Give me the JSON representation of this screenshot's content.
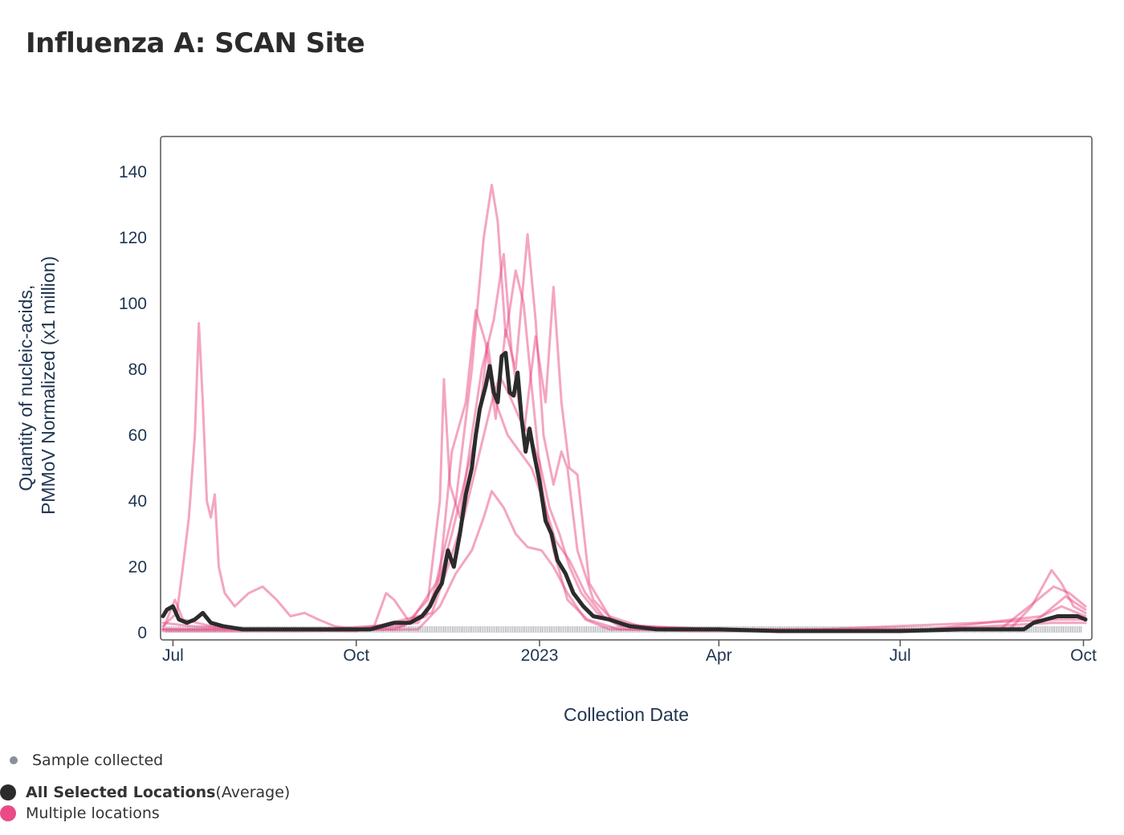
{
  "title": "Influenza A: SCAN Site",
  "legend": {
    "sample_label": "Sample collected",
    "avg_label_bold": "All Selected Locations",
    "avg_label_rest": " (Average)",
    "multi_label": "Multiple locations"
  },
  "colors": {
    "average": "#2b2b2b",
    "locations": "#e94b86",
    "sample": "#8a8f98"
  },
  "chart_data": {
    "type": "line",
    "title": "Influenza A: SCAN Site",
    "xlabel": "Collection Date",
    "ylabel_lines": [
      "Quantity of nucleic-acids,",
      "PMMoV Normalized (x1 million)"
    ],
    "x_range": [
      "2022-06-26",
      "2023-10-02"
    ],
    "ylim": [
      0,
      150
    ],
    "y_ticks": [
      0,
      20,
      40,
      60,
      80,
      100,
      120,
      140
    ],
    "x_ticks": [
      {
        "date": "2022-07-01",
        "label": "Jul"
      },
      {
        "date": "2022-10-01",
        "label": "Oct"
      },
      {
        "date": "2023-01-01",
        "label": "2023"
      },
      {
        "date": "2023-04-01",
        "label": "Apr"
      },
      {
        "date": "2023-07-01",
        "label": "Jul"
      },
      {
        "date": "2023-10-01",
        "label": "Oct"
      }
    ],
    "grid": false,
    "sample_marker_band": [
      "2022-06-26",
      "2023-10-02"
    ],
    "series": [
      {
        "name": "All Selected Locations",
        "values": [
          [
            "2022-06-26",
            5
          ],
          [
            "2022-06-28",
            7
          ],
          [
            "2022-07-01",
            8
          ],
          [
            "2022-07-04",
            4
          ],
          [
            "2022-07-08",
            3
          ],
          [
            "2022-07-12",
            4
          ],
          [
            "2022-07-16",
            6
          ],
          [
            "2022-07-20",
            3
          ],
          [
            "2022-07-26",
            2
          ],
          [
            "2022-08-05",
            1
          ],
          [
            "2022-09-01",
            1
          ],
          [
            "2022-09-20",
            1
          ],
          [
            "2022-10-01",
            1
          ],
          [
            "2022-10-08",
            1
          ],
          [
            "2022-10-14",
            2
          ],
          [
            "2022-10-20",
            3
          ],
          [
            "2022-10-28",
            3
          ],
          [
            "2022-11-03",
            5
          ],
          [
            "2022-11-07",
            8
          ],
          [
            "2022-11-10",
            12
          ],
          [
            "2022-11-13",
            15
          ],
          [
            "2022-11-16",
            25
          ],
          [
            "2022-11-19",
            20
          ],
          [
            "2022-11-22",
            30
          ],
          [
            "2022-11-25",
            42
          ],
          [
            "2022-11-28",
            50
          ],
          [
            "2022-11-30",
            60
          ],
          [
            "2022-12-02",
            68
          ],
          [
            "2022-12-05",
            75
          ],
          [
            "2022-12-07",
            81
          ],
          [
            "2022-12-09",
            73
          ],
          [
            "2022-12-11",
            70
          ],
          [
            "2022-12-13",
            84
          ],
          [
            "2022-12-15",
            85
          ],
          [
            "2022-12-17",
            73
          ],
          [
            "2022-12-19",
            72
          ],
          [
            "2022-12-21",
            79
          ],
          [
            "2022-12-23",
            65
          ],
          [
            "2022-12-25",
            55
          ],
          [
            "2022-12-27",
            62
          ],
          [
            "2022-12-29",
            55
          ],
          [
            "2023-01-01",
            46
          ],
          [
            "2023-01-04",
            34
          ],
          [
            "2023-01-07",
            30
          ],
          [
            "2023-01-10",
            22
          ],
          [
            "2023-01-14",
            18
          ],
          [
            "2023-01-18",
            12
          ],
          [
            "2023-01-23",
            8
          ],
          [
            "2023-01-28",
            5
          ],
          [
            "2023-02-05",
            4
          ],
          [
            "2023-02-15",
            2
          ],
          [
            "2023-03-01",
            1
          ],
          [
            "2023-04-01",
            1
          ],
          [
            "2023-05-01",
            0.5
          ],
          [
            "2023-06-01",
            0.5
          ],
          [
            "2023-07-01",
            0.5
          ],
          [
            "2023-08-01",
            1
          ],
          [
            "2023-08-20",
            1
          ],
          [
            "2023-09-01",
            1
          ],
          [
            "2023-09-06",
            3
          ],
          [
            "2023-09-12",
            4
          ],
          [
            "2023-09-18",
            5
          ],
          [
            "2023-09-24",
            5
          ],
          [
            "2023-09-28",
            5
          ],
          [
            "2023-10-02",
            4
          ]
        ]
      },
      {
        "name": "",
        "values": [
          [
            "2022-06-26",
            2
          ],
          [
            "2022-07-03",
            6
          ],
          [
            "2022-07-06",
            20
          ],
          [
            "2022-07-09",
            35
          ],
          [
            "2022-07-12",
            60
          ],
          [
            "2022-07-14",
            94
          ],
          [
            "2022-07-16",
            70
          ],
          [
            "2022-07-18",
            40
          ],
          [
            "2022-07-20",
            35
          ],
          [
            "2022-07-22",
            42
          ],
          [
            "2022-07-24",
            20
          ],
          [
            "2022-07-27",
            12
          ],
          [
            "2022-08-01",
            8
          ],
          [
            "2022-08-08",
            12
          ],
          [
            "2022-08-15",
            14
          ],
          [
            "2022-08-22",
            10
          ],
          [
            "2022-08-29",
            5
          ],
          [
            "2022-09-05",
            6
          ],
          [
            "2022-09-12",
            4
          ],
          [
            "2022-09-20",
            2
          ],
          [
            "2022-10-01",
            1
          ],
          [
            "2022-10-10",
            2
          ],
          [
            "2022-10-16",
            12
          ],
          [
            "2022-10-20",
            10
          ],
          [
            "2022-10-28",
            3
          ],
          [
            "2022-11-10",
            15
          ],
          [
            "2022-11-20",
            40
          ],
          [
            "2022-11-28",
            80
          ],
          [
            "2022-12-04",
            120
          ],
          [
            "2022-12-08",
            136
          ],
          [
            "2022-12-11",
            125
          ],
          [
            "2022-12-15",
            90
          ],
          [
            "2022-12-20",
            110
          ],
          [
            "2022-12-24",
            100
          ],
          [
            "2022-12-28",
            75
          ],
          [
            "2023-01-02",
            45
          ],
          [
            "2023-01-08",
            25
          ],
          [
            "2023-01-15",
            10
          ],
          [
            "2023-01-25",
            4
          ],
          [
            "2023-02-10",
            1
          ],
          [
            "2023-03-20",
            0.5
          ],
          [
            "2023-07-01",
            0.5
          ],
          [
            "2023-08-25",
            1
          ],
          [
            "2023-09-05",
            8
          ],
          [
            "2023-09-15",
            19
          ],
          [
            "2023-09-20",
            15
          ],
          [
            "2023-09-26",
            8
          ],
          [
            "2023-10-02",
            6
          ]
        ]
      },
      {
        "name": "",
        "values": [
          [
            "2022-06-26",
            1
          ],
          [
            "2022-07-02",
            10
          ],
          [
            "2022-07-06",
            4
          ],
          [
            "2022-07-20",
            2
          ],
          [
            "2022-08-10",
            1
          ],
          [
            "2022-09-10",
            1
          ],
          [
            "2022-10-20",
            1
          ],
          [
            "2022-11-05",
            5
          ],
          [
            "2022-11-12",
            18
          ],
          [
            "2022-11-18",
            55
          ],
          [
            "2022-11-25",
            70
          ],
          [
            "2022-11-30",
            98
          ],
          [
            "2022-12-05",
            88
          ],
          [
            "2022-12-10",
            65
          ],
          [
            "2022-12-15",
            92
          ],
          [
            "2022-12-20",
            80
          ],
          [
            "2022-12-26",
            121
          ],
          [
            "2022-12-30",
            95
          ],
          [
            "2023-01-03",
            60
          ],
          [
            "2023-01-08",
            45
          ],
          [
            "2023-01-12",
            55
          ],
          [
            "2023-01-15",
            50
          ],
          [
            "2023-01-20",
            25
          ],
          [
            "2023-01-28",
            10
          ],
          [
            "2023-02-08",
            3
          ],
          [
            "2023-03-10",
            1
          ],
          [
            "2023-06-01",
            0.5
          ],
          [
            "2023-08-20",
            1
          ],
          [
            "2023-09-08",
            10
          ],
          [
            "2023-09-16",
            14
          ],
          [
            "2023-09-24",
            12
          ],
          [
            "2023-10-02",
            8
          ]
        ]
      },
      {
        "name": "",
        "values": [
          [
            "2022-06-26",
            3
          ],
          [
            "2022-07-10",
            2
          ],
          [
            "2022-08-10",
            1
          ],
          [
            "2022-10-01",
            1
          ],
          [
            "2022-10-25",
            2
          ],
          [
            "2022-11-06",
            10
          ],
          [
            "2022-11-12",
            40
          ],
          [
            "2022-11-14",
            77
          ],
          [
            "2022-11-17",
            45
          ],
          [
            "2022-11-22",
            35
          ],
          [
            "2022-11-28",
            60
          ],
          [
            "2022-12-03",
            80
          ],
          [
            "2022-12-09",
            95
          ],
          [
            "2022-12-14",
            115
          ],
          [
            "2022-12-18",
            85
          ],
          [
            "2022-12-24",
            60
          ],
          [
            "2022-12-30",
            90
          ],
          [
            "2023-01-04",
            70
          ],
          [
            "2023-01-08",
            105
          ],
          [
            "2023-01-12",
            70
          ],
          [
            "2023-01-16",
            50
          ],
          [
            "2023-01-20",
            48
          ],
          [
            "2023-01-26",
            15
          ],
          [
            "2023-02-05",
            5
          ],
          [
            "2023-02-20",
            2
          ],
          [
            "2023-04-01",
            1
          ],
          [
            "2023-07-15",
            1
          ],
          [
            "2023-09-10",
            5
          ],
          [
            "2023-09-20",
            8
          ],
          [
            "2023-10-02",
            5
          ]
        ]
      },
      {
        "name": "",
        "values": [
          [
            "2022-06-26",
            1
          ],
          [
            "2022-08-01",
            1
          ],
          [
            "2022-10-01",
            0.5
          ],
          [
            "2022-11-08",
            6
          ],
          [
            "2022-11-16",
            20
          ],
          [
            "2022-11-24",
            35
          ],
          [
            "2022-12-02",
            55
          ],
          [
            "2022-12-08",
            70
          ],
          [
            "2022-12-12",
            78
          ],
          [
            "2022-12-17",
            72
          ],
          [
            "2022-12-22",
            65
          ],
          [
            "2022-12-27",
            60
          ],
          [
            "2023-01-01",
            52
          ],
          [
            "2023-01-06",
            38
          ],
          [
            "2023-01-11",
            30
          ],
          [
            "2023-01-16",
            20
          ],
          [
            "2023-01-22",
            12
          ],
          [
            "2023-01-30",
            6
          ],
          [
            "2023-02-10",
            2
          ],
          [
            "2023-03-15",
            1
          ],
          [
            "2023-09-01",
            1
          ],
          [
            "2023-09-12",
            6
          ],
          [
            "2023-09-22",
            11
          ],
          [
            "2023-10-02",
            7
          ]
        ]
      },
      {
        "name": "",
        "values": [
          [
            "2022-06-26",
            0.5
          ],
          [
            "2022-09-01",
            0.5
          ],
          [
            "2022-11-01",
            1
          ],
          [
            "2022-11-12",
            8
          ],
          [
            "2022-11-20",
            18
          ],
          [
            "2022-11-28",
            25
          ],
          [
            "2022-12-04",
            35
          ],
          [
            "2022-12-08",
            43
          ],
          [
            "2022-12-14",
            38
          ],
          [
            "2022-12-20",
            30
          ],
          [
            "2022-12-26",
            26
          ],
          [
            "2023-01-02",
            25
          ],
          [
            "2023-01-08",
            20
          ],
          [
            "2023-01-15",
            12
          ],
          [
            "2023-01-24",
            4
          ],
          [
            "2023-02-05",
            1
          ],
          [
            "2023-07-01",
            0.5
          ],
          [
            "2023-09-15",
            3
          ],
          [
            "2023-10-02",
            3
          ]
        ]
      },
      {
        "name": "",
        "values": [
          [
            "2022-06-26",
            1
          ],
          [
            "2022-09-15",
            1
          ],
          [
            "2022-11-01",
            3
          ],
          [
            "2022-11-10",
            12
          ],
          [
            "2022-11-18",
            30
          ],
          [
            "2022-11-26",
            50
          ],
          [
            "2022-12-01",
            62
          ],
          [
            "2022-12-06",
            88
          ],
          [
            "2022-12-10",
            70
          ],
          [
            "2022-12-16",
            60
          ],
          [
            "2022-12-22",
            55
          ],
          [
            "2022-12-28",
            50
          ],
          [
            "2023-01-03",
            40
          ],
          [
            "2023-01-09",
            28
          ],
          [
            "2023-01-16",
            22
          ],
          [
            "2023-01-24",
            12
          ],
          [
            "2023-02-02",
            5
          ],
          [
            "2023-02-12",
            2
          ],
          [
            "2023-05-01",
            0.5
          ],
          [
            "2023-09-18",
            4
          ],
          [
            "2023-10-02",
            4
          ]
        ]
      }
    ]
  }
}
